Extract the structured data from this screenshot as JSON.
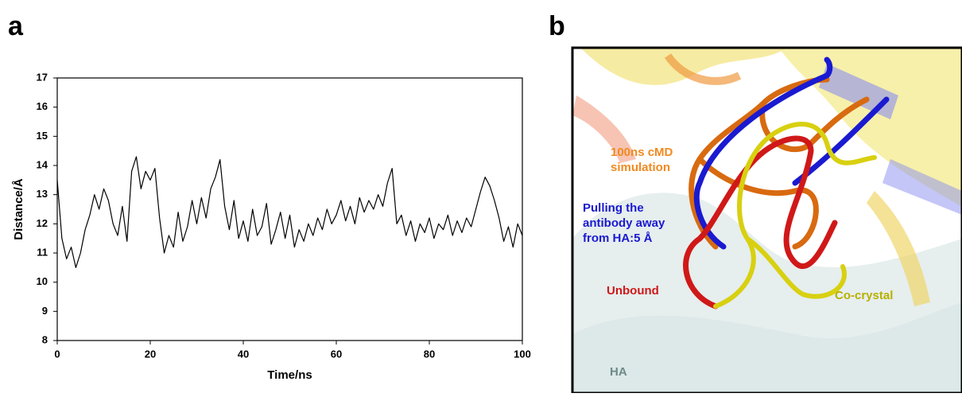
{
  "panel_labels": [
    "a",
    "b"
  ],
  "chart_data": {
    "type": "line",
    "xlabel": "Time/ns",
    "ylabel": "Distance/Å",
    "color": "#000000",
    "xlim": [
      0,
      100
    ],
    "xticks": [
      0,
      20,
      40,
      60,
      80,
      100
    ],
    "ylim": [
      8,
      17
    ],
    "yticks": [
      8,
      9,
      10,
      11,
      12,
      13,
      14,
      15,
      16,
      17
    ],
    "x": [
      0,
      1,
      2,
      3,
      4,
      5,
      6,
      7,
      8,
      9,
      10,
      11,
      12,
      13,
      14,
      15,
      16,
      17,
      18,
      19,
      20,
      21,
      22,
      23,
      24,
      25,
      26,
      27,
      28,
      29,
      30,
      31,
      32,
      33,
      34,
      35,
      36,
      37,
      38,
      39,
      40,
      41,
      42,
      43,
      44,
      45,
      46,
      47,
      48,
      49,
      50,
      51,
      52,
      53,
      54,
      55,
      56,
      57,
      58,
      59,
      60,
      61,
      62,
      63,
      64,
      65,
      66,
      67,
      68,
      69,
      70,
      71,
      72,
      73,
      74,
      75,
      76,
      77,
      78,
      79,
      80,
      81,
      82,
      83,
      84,
      85,
      86,
      87,
      88,
      89,
      90,
      91,
      92,
      93,
      94,
      95,
      96,
      97,
      98,
      99,
      100
    ],
    "values": [
      13.5,
      11.5,
      10.8,
      11.2,
      10.5,
      11.0,
      11.8,
      12.3,
      13.0,
      12.5,
      13.2,
      12.8,
      12.0,
      11.6,
      12.6,
      11.4,
      13.8,
      14.3,
      13.2,
      13.8,
      13.5,
      13.9,
      12.2,
      11.0,
      11.6,
      11.2,
      12.4,
      11.4,
      11.9,
      12.8,
      12.0,
      12.9,
      12.2,
      13.2,
      13.6,
      14.2,
      12.6,
      11.8,
      12.8,
      11.5,
      12.1,
      11.4,
      12.5,
      11.6,
      11.9,
      12.7,
      11.3,
      11.8,
      12.4,
      11.5,
      12.3,
      11.2,
      11.8,
      11.4,
      12.0,
      11.6,
      12.2,
      11.8,
      12.5,
      12.0,
      12.3,
      12.8,
      12.1,
      12.6,
      12.0,
      12.9,
      12.4,
      12.8,
      12.5,
      13.0,
      12.6,
      13.4,
      13.9,
      12.0,
      12.3,
      11.6,
      12.1,
      11.4,
      12.0,
      11.7,
      12.2,
      11.5,
      12.0,
      11.8,
      12.3,
      11.6,
      12.1,
      11.7,
      12.2,
      11.9,
      12.5,
      13.1,
      13.6,
      13.3,
      12.8,
      12.2,
      11.4,
      11.9,
      11.2,
      12.0,
      11.6
    ]
  },
  "panel_b": {
    "labels": [
      {
        "lines": [
          "100ns cMD",
          "simulation"
        ],
        "color": "#f08a20"
      },
      {
        "lines": [
          "Pulling the",
          "antibody away",
          "from HA:5 Å"
        ],
        "color": "#1a1ad0"
      },
      {
        "lines": [
          "Unbound"
        ],
        "color": "#d01818"
      },
      {
        "lines": [
          "Co-crystal"
        ],
        "color": "#b8b000"
      },
      {
        "lines": [
          "HA"
        ],
        "color": "#6e8a8a"
      }
    ]
  }
}
